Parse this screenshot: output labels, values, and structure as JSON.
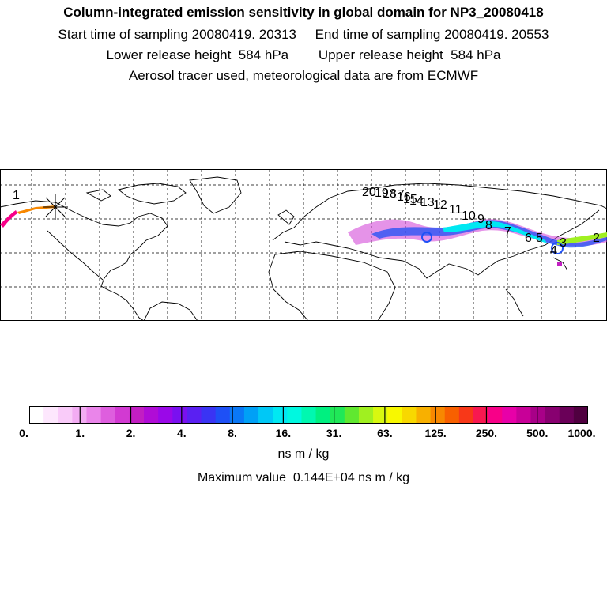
{
  "header": {
    "title": "Column-integrated emission sensitivity in global domain for NP3_20080418",
    "line2": "Start time of sampling 20080419. 20313     End time of sampling 20080419. 20553",
    "line3": "Lower release height  584 hPa        Upper release height  584 hPa",
    "line4": "Aerosol tracer used, meteorological data are from ECMWF"
  },
  "map": {
    "day_labels": [
      "20",
      "19",
      "18",
      "17",
      "16",
      "15",
      "14",
      "13",
      "12",
      "11",
      "10",
      "9",
      "8",
      "7",
      "6",
      "5",
      "4",
      "3",
      "2",
      "1"
    ],
    "release_marker": "star-icon"
  },
  "colorbar": {
    "colors": [
      "#ffffff",
      "#fde7fd",
      "#f9cbf9",
      "#f3acf3",
      "#ea85ea",
      "#de5ede",
      "#d23ad2",
      "#c21ec2",
      "#b00cd6",
      "#9a08e8",
      "#7a10f0",
      "#5a20f2",
      "#3a34f4",
      "#1e50f6",
      "#0a78f6",
      "#00a0f6",
      "#00c8f6",
      "#00e8f2",
      "#00f8e0",
      "#00f8b0",
      "#00f080",
      "#20e858",
      "#60e830",
      "#a0f020",
      "#d8f810",
      "#f8f800",
      "#f8d800",
      "#f8b000",
      "#f88800",
      "#f86000",
      "#f83818",
      "#f81850",
      "#f80088",
      "#e800a8",
      "#c80098",
      "#a80088",
      "#880070",
      "#6a0058",
      "#500040"
    ],
    "tick_labels": [
      "0.",
      "1.",
      "2.",
      "4.",
      "8.",
      "16.",
      "31.",
      "63.",
      "125.",
      "250.",
      "500.",
      "1000."
    ],
    "unit": "ns m / kg",
    "max_value_text": "Maximum value  0.144E+04 ns m / kg"
  }
}
